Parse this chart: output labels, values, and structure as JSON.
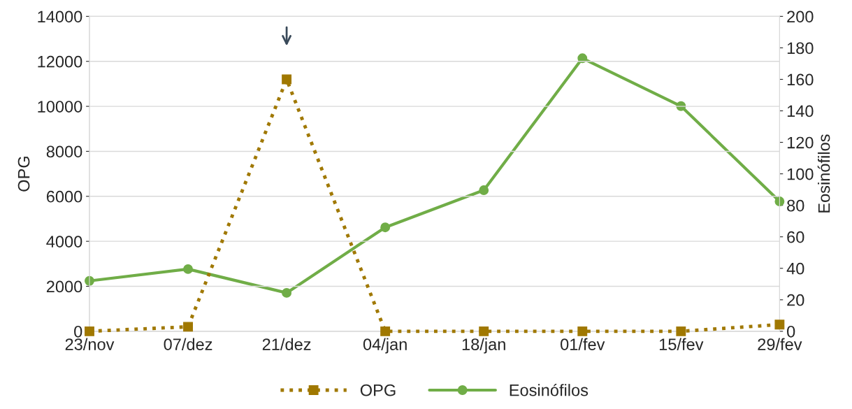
{
  "chart_data": {
    "type": "line",
    "ylabel": "OPG",
    "y2label": "Eosinófilos",
    "categories": [
      "23/nov",
      "07/dez",
      "21/dez",
      "04/jan",
      "18/jan",
      "01/fev",
      "15/fev",
      "29/fev"
    ],
    "series": [
      {
        "name": "OPG",
        "color": "#a07800",
        "marker": "square",
        "line_style": "dotted",
        "values": [
          0,
          200,
          11200,
          0,
          0,
          0,
          0,
          300
        ]
      },
      {
        "name": "Eosinófilos",
        "color": "#70ad47",
        "marker": "circle",
        "line_style": "solid",
        "axis": "y2",
        "values": [
          32,
          39.5,
          24.4,
          66,
          89.6,
          173.4,
          143,
          82.5
        ]
      }
    ],
    "ylim": [
      0,
      14000
    ],
    "yticks": [
      0,
      2000,
      4000,
      6000,
      8000,
      10000,
      12000,
      14000
    ],
    "y2lim": [
      0,
      200
    ],
    "y2ticks": [
      0,
      20,
      40,
      60,
      80,
      100,
      120,
      140,
      160,
      180,
      200
    ],
    "grid": "y",
    "legend": "bottom"
  }
}
